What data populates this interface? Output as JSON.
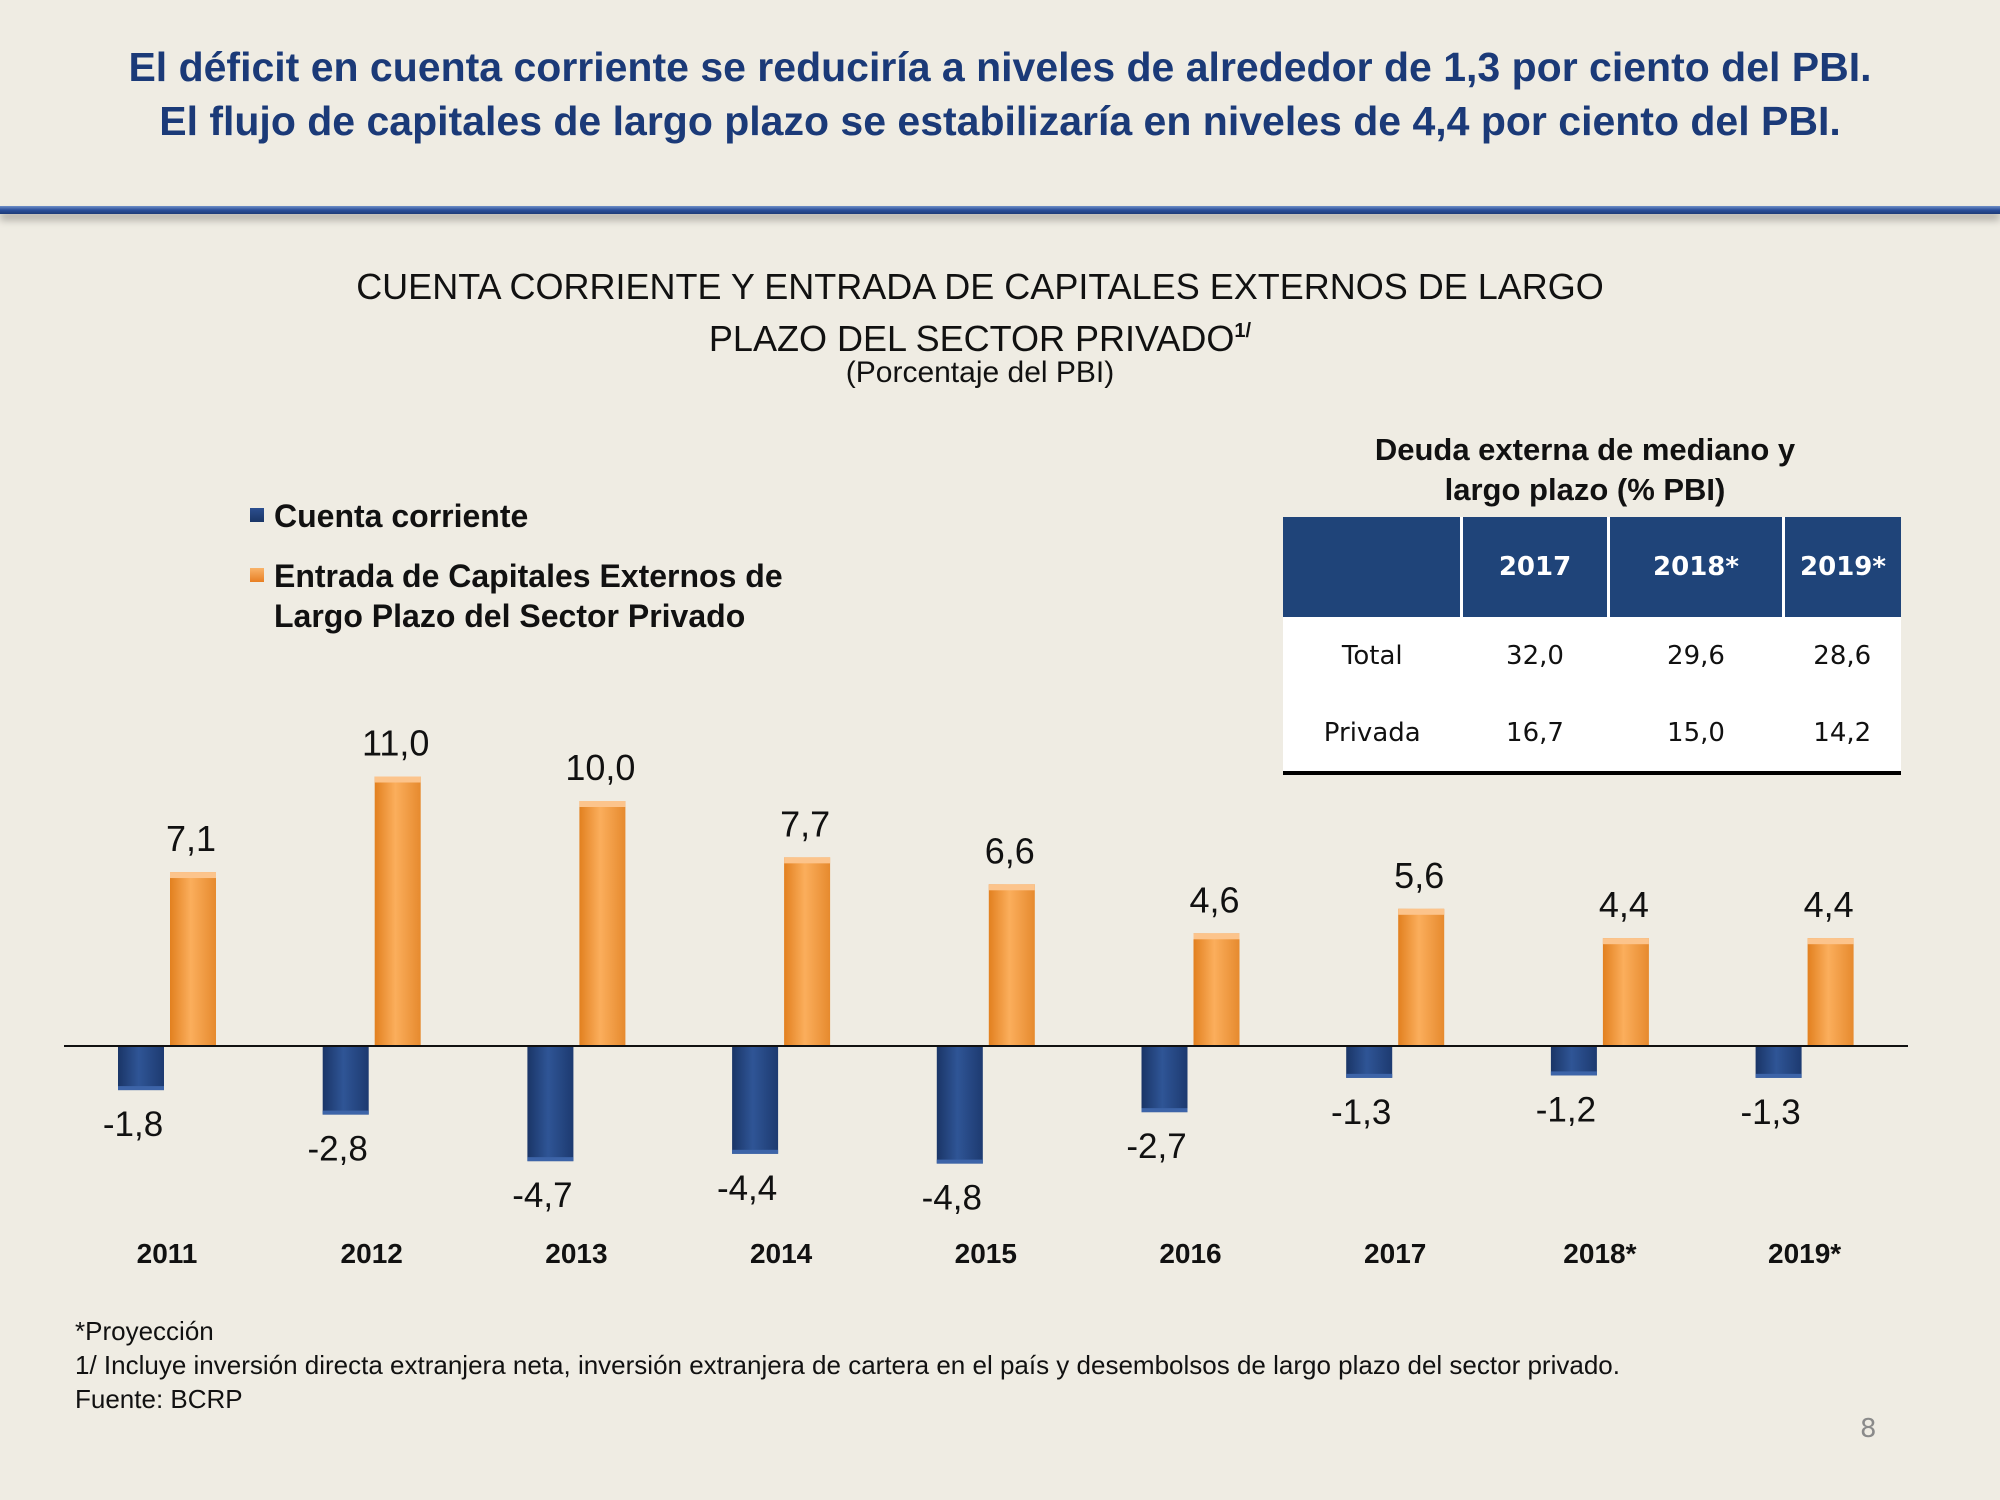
{
  "headline": {
    "line1": "El déficit en cuenta corriente se reduciría a niveles de alrededor de 1,3 por ciento del PBI.",
    "line2": "El flujo de capitales de largo plazo se estabilizaría en niveles de 4,4 por ciento del PBI."
  },
  "legend": {
    "current_account": "Cuenta corriente",
    "capital_inflows_line1": "Entrada de Capitales Externos de",
    "capital_inflows_line2": "Largo Plazo del Sector Privado"
  },
  "debt_table": {
    "title_line1": "Deuda externa de mediano y",
    "title_line2": "largo plazo (% PBI)",
    "headers": [
      "",
      "2017",
      "2018*",
      "2019*"
    ],
    "rows": [
      {
        "label": "Total",
        "values": [
          "32,0",
          "29,6",
          "28,6"
        ]
      },
      {
        "label": "Privada",
        "values": [
          "16,7",
          "15,0",
          "14,2"
        ]
      }
    ]
  },
  "chart_data": {
    "type": "bar",
    "title_line1": "CUENTA CORRIENTE Y ENTRADA DE CAPITALES EXTERNOS DE LARGO",
    "title_line2": "PLAZO DEL SECTOR PRIVADO",
    "title_superscript": "1/",
    "subtitle": "(Porcentaje del PBI)",
    "categories": [
      "2011",
      "2012",
      "2013",
      "2014",
      "2015",
      "2016",
      "2017",
      "2018*",
      "2019*"
    ],
    "series": [
      {
        "name": "Cuenta corriente",
        "color": "#23447f",
        "values": [
          -1.8,
          -2.8,
          -4.7,
          -4.4,
          -4.8,
          -2.7,
          -1.3,
          -1.2,
          -1.3
        ],
        "labels": [
          "-1,8",
          "-2,8",
          "-4,7",
          "-4,4",
          "-4,8",
          "-2,7",
          "-1,3",
          "-1,2",
          "-1,3"
        ]
      },
      {
        "name": "Entrada de Capitales Externos de Largo Plazo del Sector Privado",
        "color": "#f59a3c",
        "values": [
          7.1,
          11.0,
          10.0,
          7.7,
          6.6,
          4.6,
          5.6,
          4.4,
          4.4
        ],
        "labels": [
          "7,1",
          "11,0",
          "10,0",
          "7,7",
          "6,6",
          "4,6",
          "5,6",
          "4,4",
          "4,4"
        ]
      }
    ],
    "ylim": [
      -5,
      11
    ],
    "grid": false,
    "legend_position": "top-left"
  },
  "notes": {
    "projection": "*Proyección",
    "footnote": "1/ Incluye inversión directa extranjera neta, inversión extranjera de cartera en el país  y desembolsos de largo plazo del sector privado.",
    "source": "Fuente: BCRP"
  },
  "page_number": "8"
}
